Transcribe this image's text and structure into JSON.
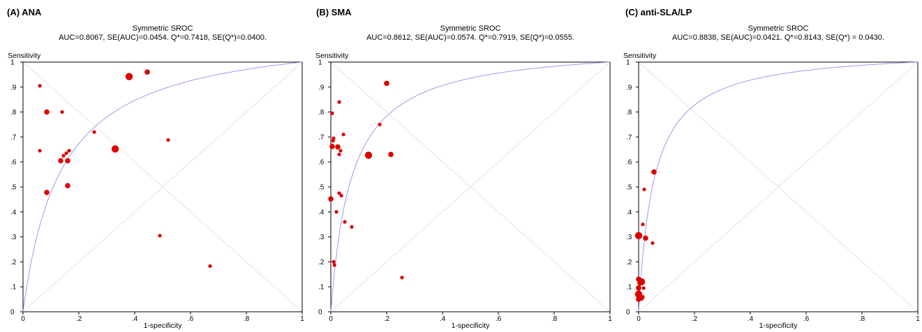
{
  "chart_data": [
    {
      "type": "scatter",
      "panel_title": "(A) ANA",
      "title": "Symmetric SROC",
      "subtitle": "AUC=0.8067, SE(AUC)=0.0454. Q*=0.7418, SE(Q*)=0.0400.",
      "xlabel": "1-specificity",
      "ylabel": "Sensitivity",
      "xlim": [
        0,
        1
      ],
      "ylim": [
        0,
        1
      ],
      "x_ticks": [
        "0",
        ".2",
        ".4",
        ".6",
        ".8",
        "1"
      ],
      "y_ticks": [
        "0",
        ".1",
        ".2",
        ".3",
        ".4",
        ".5",
        ".6",
        ".7",
        ".8",
        ".9",
        "1"
      ],
      "curve": {
        "type": "symmetric_sroc",
        "Q": 0.7418,
        "color": "#9999ee"
      },
      "point_color": "#dd0000",
      "points": [
        {
          "x": 0.06,
          "y": 0.905,
          "w": 1
        },
        {
          "x": 0.06,
          "y": 0.645,
          "w": 1
        },
        {
          "x": 0.085,
          "y": 0.8,
          "w": 2
        },
        {
          "x": 0.085,
          "y": 0.478,
          "w": 2
        },
        {
          "x": 0.14,
          "y": 0.8,
          "w": 1
        },
        {
          "x": 0.135,
          "y": 0.605,
          "w": 2
        },
        {
          "x": 0.145,
          "y": 0.625,
          "w": 1
        },
        {
          "x": 0.155,
          "y": 0.635,
          "w": 1
        },
        {
          "x": 0.165,
          "y": 0.645,
          "w": 1
        },
        {
          "x": 0.16,
          "y": 0.605,
          "w": 2
        },
        {
          "x": 0.16,
          "y": 0.505,
          "w": 2
        },
        {
          "x": 0.255,
          "y": 0.72,
          "w": 1
        },
        {
          "x": 0.33,
          "y": 0.652,
          "w": 3
        },
        {
          "x": 0.38,
          "y": 0.942,
          "w": 3
        },
        {
          "x": 0.445,
          "y": 0.96,
          "w": 2
        },
        {
          "x": 0.52,
          "y": 0.688,
          "w": 1
        },
        {
          "x": 0.49,
          "y": 0.305,
          "w": 1
        },
        {
          "x": 0.67,
          "y": 0.183,
          "w": 1
        }
      ]
    },
    {
      "type": "scatter",
      "panel_title": "(B) SMA",
      "title": "Symmetric SROC",
      "subtitle": "AUC=0.8612, SE(AUC)=0.0574. Q*=0.7919, SE(Q*)=0.0555.",
      "xlabel": "1-specificity",
      "ylabel": "Sensitivity",
      "xlim": [
        0,
        1
      ],
      "ylim": [
        0,
        1
      ],
      "x_ticks": [
        "0",
        ".2",
        ".4",
        ".6",
        ".8",
        "1"
      ],
      "y_ticks": [
        "0",
        ".1",
        ".2",
        ".3",
        ".4",
        ".5",
        ".6",
        ".7",
        ".8",
        ".9",
        "1"
      ],
      "curve": {
        "type": "symmetric_sroc",
        "Q": 0.7919,
        "color": "#9999ee"
      },
      "point_color": "#dd0000",
      "points": [
        {
          "x": 0.005,
          "y": 0.795,
          "w": 1
        },
        {
          "x": 0.005,
          "y": 0.662,
          "w": 2
        },
        {
          "x": 0.008,
          "y": 0.685,
          "w": 1
        },
        {
          "x": 0.01,
          "y": 0.695,
          "w": 1
        },
        {
          "x": 0.0,
          "y": 0.452,
          "w": 2
        },
        {
          "x": 0.01,
          "y": 0.2,
          "w": 1
        },
        {
          "x": 0.013,
          "y": 0.187,
          "w": 1
        },
        {
          "x": 0.02,
          "y": 0.4,
          "w": 1
        },
        {
          "x": 0.025,
          "y": 0.66,
          "w": 2
        },
        {
          "x": 0.03,
          "y": 0.63,
          "w": 1
        },
        {
          "x": 0.03,
          "y": 0.84,
          "w": 1
        },
        {
          "x": 0.035,
          "y": 0.645,
          "w": 1
        },
        {
          "x": 0.03,
          "y": 0.475,
          "w": 1
        },
        {
          "x": 0.038,
          "y": 0.465,
          "w": 1
        },
        {
          "x": 0.045,
          "y": 0.71,
          "w": 1
        },
        {
          "x": 0.05,
          "y": 0.36,
          "w": 1
        },
        {
          "x": 0.075,
          "y": 0.34,
          "w": 1
        },
        {
          "x": 0.135,
          "y": 0.627,
          "w": 3
        },
        {
          "x": 0.175,
          "y": 0.75,
          "w": 1
        },
        {
          "x": 0.2,
          "y": 0.915,
          "w": 2
        },
        {
          "x": 0.215,
          "y": 0.63,
          "w": 2
        },
        {
          "x": 0.255,
          "y": 0.137,
          "w": 1
        }
      ]
    },
    {
      "type": "scatter",
      "panel_title": "(C) anti-SLA/LP",
      "title": "Symmetric SROC",
      "subtitle": "AUC=0.8838, SE(AUC)=0.0421. Q*=0.8143, SE(Q*) = 0.0430.",
      "xlabel": "1-specificity",
      "ylabel": "Sensitivity",
      "xlim": [
        0,
        1
      ],
      "ylim": [
        0,
        1
      ],
      "x_ticks": [
        "0",
        ".2",
        ".4",
        ".6",
        ".8",
        "1"
      ],
      "y_ticks": [
        "0",
        ".1",
        ".2",
        ".3",
        ".4",
        ".5",
        ".6",
        ".7",
        ".8",
        ".9",
        "1"
      ],
      "curve": {
        "type": "symmetric_sroc",
        "Q": 0.8143,
        "color": "#9999ee"
      },
      "point_color": "#dd0000",
      "points": [
        {
          "x": 0.0,
          "y": 0.305,
          "w": 3
        },
        {
          "x": 0.055,
          "y": 0.56,
          "w": 2
        },
        {
          "x": 0.02,
          "y": 0.49,
          "w": 1
        },
        {
          "x": 0.015,
          "y": 0.35,
          "w": 1
        },
        {
          "x": 0.025,
          "y": 0.295,
          "w": 2
        },
        {
          "x": 0.05,
          "y": 0.275,
          "w": 1
        },
        {
          "x": 0.0,
          "y": 0.13,
          "w": 2
        },
        {
          "x": 0.005,
          "y": 0.115,
          "w": 2
        },
        {
          "x": 0.01,
          "y": 0.12,
          "w": 3
        },
        {
          "x": 0.0,
          "y": 0.095,
          "w": 2
        },
        {
          "x": 0.018,
          "y": 0.095,
          "w": 1
        },
        {
          "x": 0.0,
          "y": 0.07,
          "w": 3
        },
        {
          "x": 0.005,
          "y": 0.06,
          "w": 2
        },
        {
          "x": 0.01,
          "y": 0.055,
          "w": 2
        },
        {
          "x": 0.015,
          "y": 0.06,
          "w": 1
        },
        {
          "x": 0.0,
          "y": 0.05,
          "w": 2
        }
      ]
    }
  ]
}
